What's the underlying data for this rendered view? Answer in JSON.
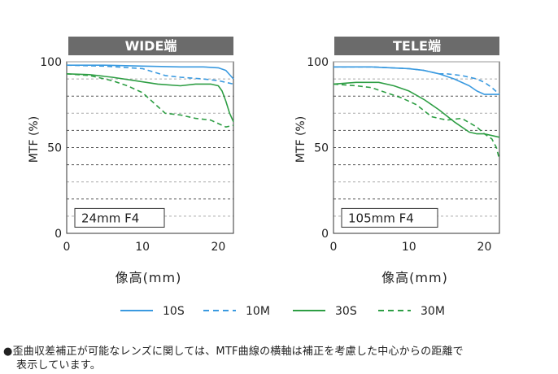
{
  "chart_data": [
    {
      "type": "line",
      "title": "WIDE端",
      "xlabel": "像高(mm)",
      "ylabel": "MTF (%)",
      "xlim": [
        0,
        22
      ],
      "ylim": [
        0,
        100
      ],
      "x_ticks": [
        "0",
        "10",
        "20"
      ],
      "y_ticks": [
        "0",
        "50",
        "100"
      ],
      "annotation": "24mm F4",
      "grid": "horizontal every 10%, dashed",
      "series": [
        {
          "name": "10S",
          "color": "#3a9ae0",
          "style": "solid",
          "x": [
            0,
            5,
            10,
            15,
            18,
            20,
            21,
            22
          ],
          "y": [
            98,
            98,
            97.5,
            97,
            97,
            96.5,
            95,
            90
          ]
        },
        {
          "name": "10M",
          "color": "#3a9ae0",
          "style": "dashed",
          "x": [
            0,
            5,
            10,
            13,
            15,
            18,
            20,
            21,
            22
          ],
          "y": [
            98,
            97.5,
            96,
            92,
            91,
            90,
            89,
            88,
            87
          ]
        },
        {
          "name": "30S",
          "color": "#2e9e44",
          "style": "solid",
          "x": [
            0,
            3,
            6,
            9,
            12,
            15,
            17,
            19,
            20,
            20.5,
            21,
            21.5,
            22
          ],
          "y": [
            93,
            92.5,
            91,
            89,
            87,
            86,
            87,
            87,
            86,
            83,
            77,
            70,
            65
          ]
        },
        {
          "name": "30M",
          "color": "#2e9e44",
          "style": "dashed",
          "x": [
            0,
            3,
            6,
            8,
            10,
            11,
            12,
            13,
            15,
            17,
            19,
            21,
            22
          ],
          "y": [
            93,
            92,
            89,
            86,
            82,
            78,
            74,
            70,
            69,
            67,
            66,
            62,
            63
          ]
        }
      ]
    },
    {
      "type": "line",
      "title": "TELE端",
      "xlabel": "像高(mm)",
      "ylabel": "MTF (%)",
      "xlim": [
        0,
        22
      ],
      "ylim": [
        0,
        100
      ],
      "x_ticks": [
        "0",
        "10",
        "20"
      ],
      "y_ticks": [
        "0",
        "50",
        "100"
      ],
      "annotation": "105mm F4",
      "grid": "horizontal every 10%, dashed",
      "series": [
        {
          "name": "10S",
          "color": "#3a9ae0",
          "style": "solid",
          "x": [
            0,
            5,
            10,
            12,
            14,
            16,
            18,
            19,
            20,
            21,
            22
          ],
          "y": [
            97,
            97,
            96,
            95,
            93,
            90,
            86,
            83,
            81,
            81,
            81
          ]
        },
        {
          "name": "10M",
          "color": "#3a9ae0",
          "style": "dashed",
          "x": [
            0,
            5,
            10,
            12,
            14,
            15,
            17,
            19,
            20,
            21,
            22
          ],
          "y": [
            97,
            97,
            96,
            95,
            93,
            93,
            92,
            90,
            88,
            85,
            81
          ]
        },
        {
          "name": "30S",
          "color": "#2e9e44",
          "style": "solid",
          "x": [
            0,
            3,
            6,
            8,
            10,
            12,
            14,
            16,
            18,
            19,
            20,
            21,
            22
          ],
          "y": [
            87,
            88,
            88,
            86,
            83,
            78,
            72,
            65,
            59,
            58,
            58,
            57,
            56
          ]
        },
        {
          "name": "30M",
          "color": "#2e9e44",
          "style": "dashed",
          "x": [
            0,
            3,
            5,
            7,
            9,
            11,
            13,
            15,
            17,
            19,
            20,
            21,
            21.6,
            22
          ],
          "y": [
            87,
            86,
            85,
            82,
            79,
            75,
            68,
            66,
            67,
            62,
            58,
            55,
            50,
            43
          ]
        }
      ]
    }
  ],
  "legend": [
    {
      "label": "10S",
      "color": "#3a9ae0",
      "style": "solid"
    },
    {
      "label": "10M",
      "color": "#3a9ae0",
      "style": "dashed"
    },
    {
      "label": "30S",
      "color": "#2e9e44",
      "style": "solid"
    },
    {
      "label": "30M",
      "color": "#2e9e44",
      "style": "dashed"
    }
  ],
  "footnote": {
    "line1": "●歪曲収差補正が可能なレンズに関しては、MTF曲線の横軸は補正を考慮した中心からの距離で",
    "line2": "表示しています。"
  },
  "colors": {
    "title_bar": "#6b6b6b",
    "grid": "#555555",
    "light_gridband": "#aaaaaa"
  }
}
